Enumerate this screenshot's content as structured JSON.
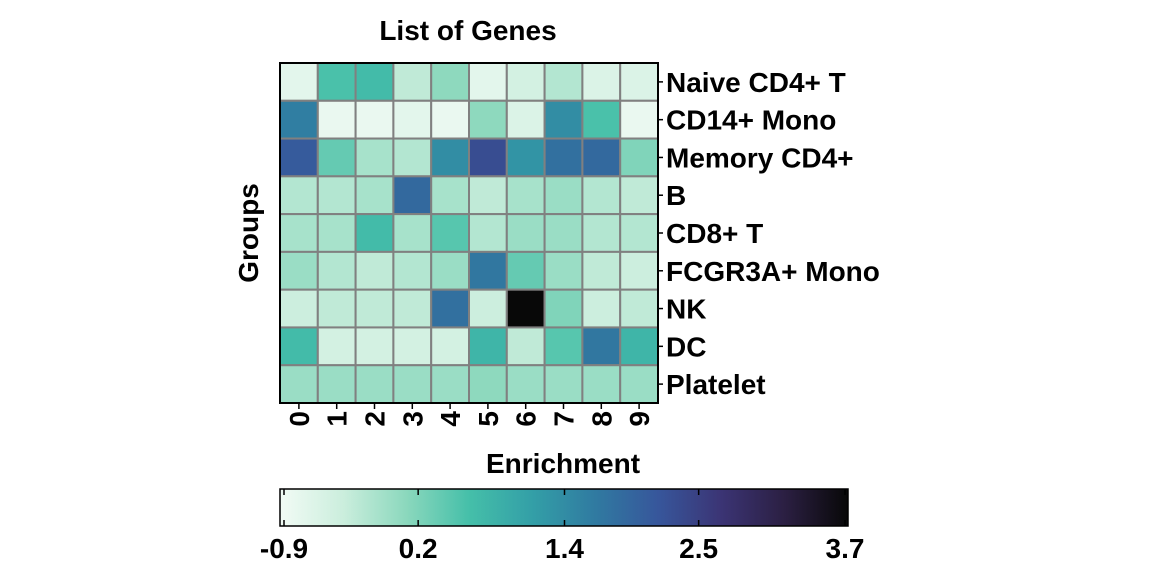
{
  "chart_data": {
    "type": "heatmap",
    "title": "List of Genes",
    "ylabel": "Groups",
    "x_categories": [
      "0",
      "1",
      "2",
      "3",
      "4",
      "5",
      "6",
      "7",
      "8",
      "9"
    ],
    "y_categories": [
      "Naive CD4+ T",
      "CD14+ Mono",
      "Memory CD4+",
      "B",
      "CD8+ T",
      "FCGR3A+ Mono",
      "NK",
      "DC",
      "Platelet"
    ],
    "values": [
      [
        -0.7,
        0.6,
        0.7,
        -0.3,
        0.1,
        -0.7,
        -0.5,
        -0.2,
        -0.6,
        -0.6
      ],
      [
        1.6,
        -0.8,
        -0.8,
        -0.7,
        -0.8,
        0.1,
        -0.6,
        1.4,
        0.6,
        -0.8
      ],
      [
        2.1,
        0.4,
        -0.1,
        -0.2,
        1.4,
        2.3,
        1.3,
        1.8,
        1.9,
        0.2
      ],
      [
        -0.2,
        -0.2,
        -0.1,
        1.9,
        -0.1,
        -0.3,
        -0.1,
        0.0,
        -0.2,
        -0.3
      ],
      [
        -0.1,
        -0.1,
        0.7,
        -0.1,
        0.5,
        -0.2,
        0.0,
        0.0,
        -0.2,
        -0.2
      ],
      [
        0.0,
        -0.2,
        -0.3,
        -0.2,
        0.0,
        1.7,
        0.4,
        0.0,
        -0.3,
        -0.4
      ],
      [
        -0.4,
        -0.3,
        -0.3,
        -0.3,
        1.8,
        -0.4,
        3.7,
        0.2,
        -0.4,
        -0.3
      ],
      [
        0.7,
        -0.5,
        -0.5,
        -0.5,
        -0.5,
        0.8,
        -0.3,
        0.5,
        1.7,
        0.8
      ],
      [
        0.0,
        0.0,
        0.0,
        0.0,
        0.0,
        0.1,
        0.0,
        0.0,
        0.0,
        0.0
      ]
    ],
    "colorbar": {
      "label": "Enrichment",
      "min": -0.9,
      "max": 3.7,
      "ticks": [
        -0.9,
        0.2,
        1.4,
        2.5,
        3.7
      ],
      "tick_labels": [
        "-0.9",
        "0.2",
        "1.4",
        "2.5",
        "3.7"
      ],
      "colormap": [
        "#f2fbf5",
        "#cbeedd",
        "#8bd8bd",
        "#45bfa9",
        "#339fa7",
        "#307aa1",
        "#37569b",
        "#3b3474",
        "#2b1f42",
        "#080808"
      ]
    },
    "grid_color": "#808080"
  }
}
